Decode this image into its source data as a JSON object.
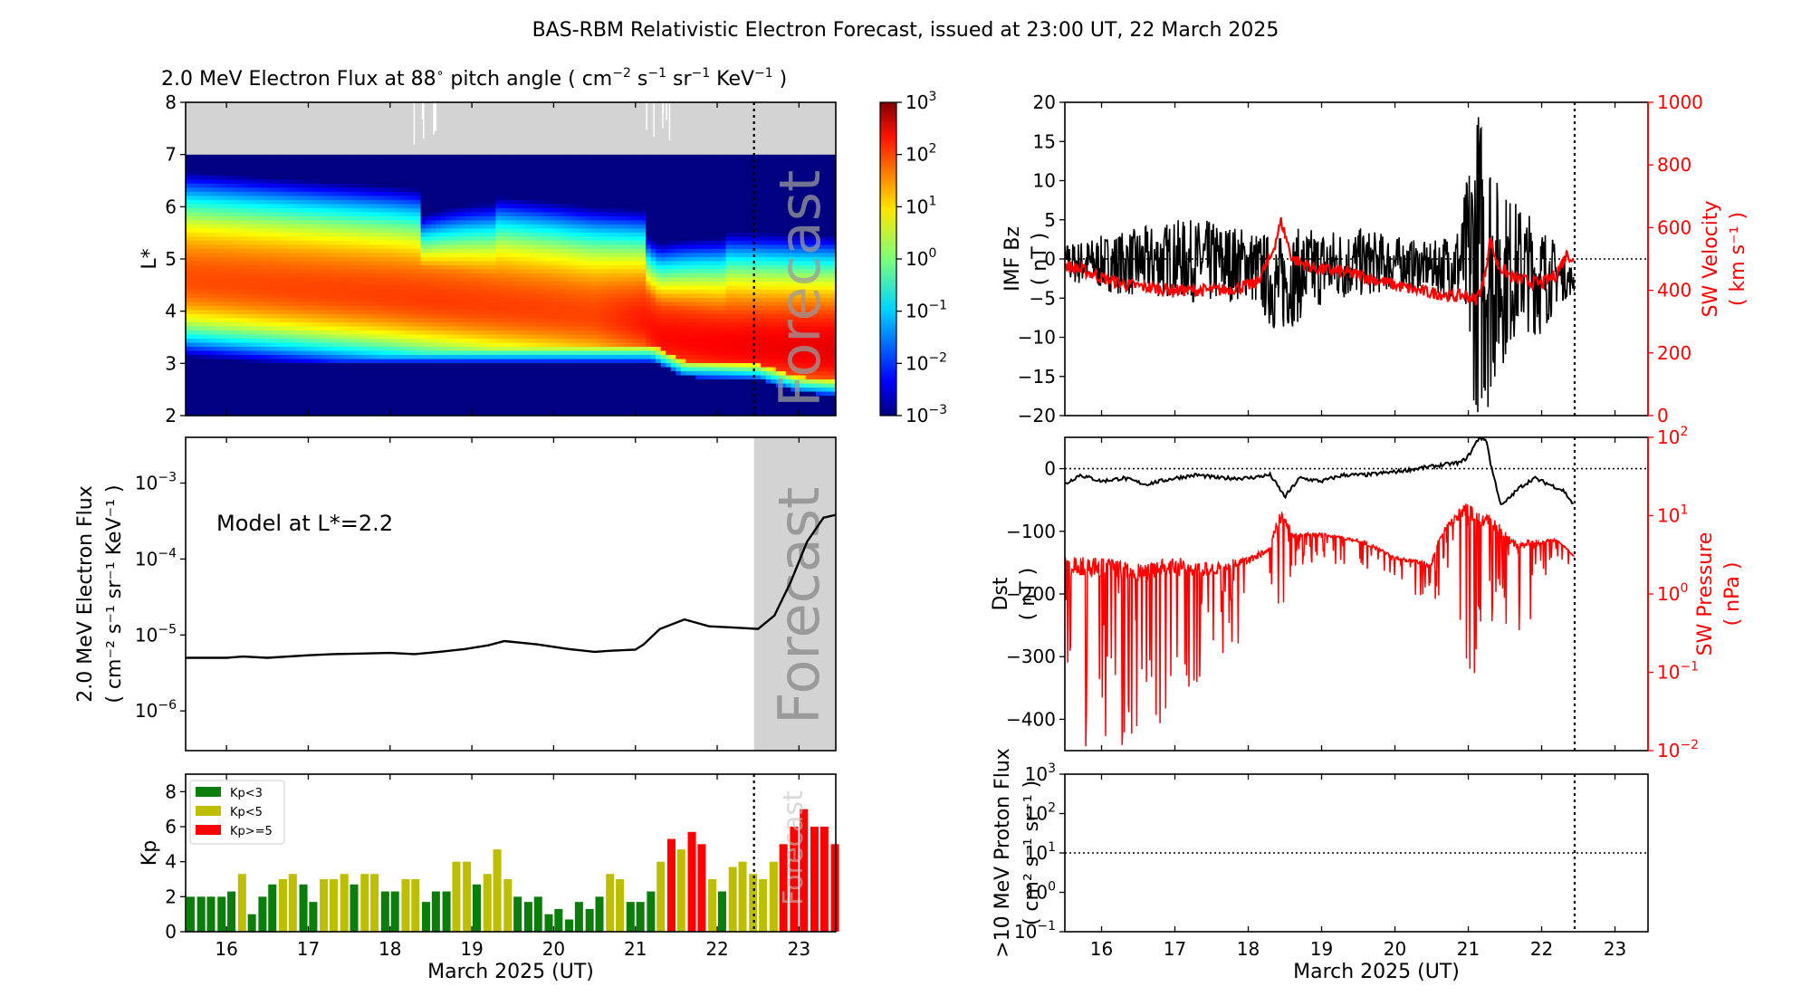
{
  "title": "BAS-RBM Relativistic Electron Forecast, issued at 23:00 UT, 22 March 2025",
  "forecast_label": "Forecast",
  "date_axis": {
    "xlabel": "March 2025 (UT)",
    "ticks": [
      "16",
      "17",
      "18",
      "19",
      "20",
      "21",
      "22",
      "23"
    ],
    "xlim_days": [
      15.5,
      23.45
    ],
    "issue_day": 22.45
  },
  "colors": {
    "model": "#000000",
    "sw": "#ff0000",
    "kp_low": "#0b7d0b",
    "kp_mid": "#bebe00",
    "kp_high": "#ff0000",
    "grey": "#d3d3d3"
  },
  "panels": {
    "flux_map": {
      "title_main": "2.0 MeV Electron Flux at 88",
      "title_deg": "∘",
      "title_mid": " pitch angle ( cm",
      "title_e1": "−2",
      "title_s": " s",
      "title_e2": "−1",
      "title_sr": " sr",
      "title_e3": "−1",
      "title_kev": " KeV",
      "title_e4": "−1",
      "title_end": " )",
      "ylabel": "L*",
      "yticks": [
        "2",
        "3",
        "4",
        "5",
        "6",
        "7",
        "8"
      ],
      "colorbar_ticks": [
        {
          "base": "10",
          "exp": "3"
        },
        {
          "base": "10",
          "exp": "2"
        },
        {
          "base": "10",
          "exp": "1"
        },
        {
          "base": "10",
          "exp": "0"
        },
        {
          "base": "10",
          "exp": "−1"
        },
        {
          "base": "10",
          "exp": "−2"
        },
        {
          "base": "10",
          "exp": "−3"
        }
      ]
    },
    "flux_line": {
      "annotation": "Model at L*=2.2",
      "ylabel_1": "2.0 MeV Electron Flux",
      "ylabel_2": "( cm⁻² s⁻¹ sr⁻¹ KeV⁻¹ )",
      "yticks": [
        {
          "base": "10",
          "exp": "−3"
        },
        {
          "base": "10",
          "exp": "−4"
        },
        {
          "base": "10",
          "exp": "−5"
        },
        {
          "base": "10",
          "exp": "−6"
        }
      ]
    },
    "kp": {
      "ylabel": "Kp",
      "yticks": [
        "0",
        "2",
        "4",
        "6",
        "8"
      ],
      "legend": [
        "Kp<3",
        "Kp<5",
        "Kp>=5"
      ]
    },
    "imf": {
      "ylabel_1": "IMF Bz",
      "ylabel_2": "( nT )",
      "y2label_1": "SW Velocity",
      "y2label_2": "( km s⁻¹ )",
      "yticks": [
        "20",
        "15",
        "10",
        "5",
        "0",
        "−5",
        "−10",
        "−15",
        "−20"
      ],
      "y2ticks": [
        "1000",
        "800",
        "600",
        "400",
        "200",
        "0"
      ]
    },
    "dst": {
      "ylabel_1": "Dst",
      "ylabel_2": "( nT )",
      "y2label_1": "SW Pressure",
      "y2label_2": "( nPa )",
      "yticks": [
        "0",
        "−100",
        "−200",
        "−300",
        "−400"
      ],
      "y2ticks": [
        {
          "base": "10",
          "exp": "2"
        },
        {
          "base": "10",
          "exp": "1"
        },
        {
          "base": "10",
          "exp": "0"
        },
        {
          "base": "10",
          "exp": "−1"
        },
        {
          "base": "10",
          "exp": "−2"
        }
      ]
    },
    "proton": {
      "ylabel_1": ">10 MeV Proton Flux",
      "ylabel_2": "( cm² s⁻¹ sr⁻¹ )",
      "yticks": [
        {
          "base": "10",
          "exp": "3"
        },
        {
          "base": "10",
          "exp": "2"
        },
        {
          "base": "10",
          "exp": "1"
        },
        {
          "base": "10",
          "exp": "0"
        },
        {
          "base": "10",
          "exp": "−1"
        }
      ]
    }
  },
  "chart_data": [
    {
      "type": "heatmap",
      "title": "2.0 MeV Electron Flux at 88° pitch angle ( cm−2 s−1 sr−1 KeV−1 )",
      "ylabel": "L*",
      "xlim": [
        15.5,
        23.45
      ],
      "ylim": [
        2,
        8
      ],
      "colorbar": {
        "scale": "log",
        "range": [
          0.001,
          1000
        ],
        "colormap": "jet"
      },
      "grey_region_above_L": 7.0,
      "core_L": [
        [
          15.5,
          4.6
        ],
        [
          18.0,
          4.3
        ],
        [
          20.0,
          4.0
        ],
        [
          21.1,
          3.8
        ],
        [
          21.3,
          3.5
        ],
        [
          22.0,
          3.35
        ],
        [
          23.45,
          3.25
        ]
      ],
      "core_log_flux": [
        [
          15.5,
          1.8
        ],
        [
          18.5,
          1.9
        ],
        [
          20.5,
          1.85
        ],
        [
          21.3,
          2.2
        ],
        [
          22.4,
          2.3
        ],
        [
          23.45,
          2.4
        ]
      ],
      "inner_edge_L": [
        [
          15.5,
          3.05
        ],
        [
          21.2,
          3.05
        ],
        [
          21.6,
          2.75
        ],
        [
          22.5,
          2.7
        ],
        [
          23.0,
          2.45
        ],
        [
          23.45,
          2.4
        ]
      ],
      "outer_dropouts": [
        {
          "day": 18.4,
          "depth": 0.9
        },
        {
          "day": 21.2,
          "depth": 0.7
        }
      ]
    },
    {
      "type": "line",
      "series": [
        {
          "name": "Model at L*=2.2",
          "x": [
            15.5,
            16.0,
            16.2,
            16.5,
            17.0,
            17.3,
            17.7,
            18.0,
            18.3,
            18.6,
            18.9,
            19.2,
            19.4,
            19.8,
            20.2,
            20.5,
            20.7,
            21.0,
            21.1,
            21.3,
            21.6,
            21.9,
            22.2,
            22.5,
            22.7,
            22.9,
            23.1,
            23.3,
            23.45
          ],
          "y": [
            5e-06,
            5e-06,
            5.2e-06,
            5e-06,
            5.4e-06,
            5.6e-06,
            5.7e-06,
            5.8e-06,
            5.6e-06,
            6e-06,
            6.5e-06,
            7.3e-06,
            8.3e-06,
            7.5e-06,
            6.5e-06,
            6e-06,
            6.2e-06,
            6.4e-06,
            7.5e-06,
            1.2e-05,
            1.6e-05,
            1.3e-05,
            1.25e-05,
            1.2e-05,
            1.8e-05,
            5e-05,
            0.00017,
            0.00035,
            0.00038
          ]
        }
      ],
      "ylabel": "2.0 MeV Electron Flux ( cm−2 s−1 sr−1 KeV−1 )",
      "yscale": "log",
      "ylim": [
        3e-07,
        0.004
      ],
      "forecast_window": [
        22.45,
        23.45
      ]
    },
    {
      "type": "bar",
      "ylabel": "Kp",
      "ylim": [
        0,
        9
      ],
      "bar_width_days": 0.1,
      "x": [
        15.56,
        15.69,
        15.81,
        15.94,
        16.06,
        16.19,
        16.31,
        16.44,
        16.56,
        16.69,
        16.81,
        16.94,
        17.06,
        17.19,
        17.31,
        17.44,
        17.56,
        17.69,
        17.81,
        17.94,
        18.06,
        18.19,
        18.31,
        18.44,
        18.56,
        18.69,
        18.81,
        18.94,
        19.06,
        19.19,
        19.31,
        19.44,
        19.56,
        19.69,
        19.81,
        19.94,
        20.06,
        20.19,
        20.31,
        20.44,
        20.56,
        20.69,
        20.81,
        20.94,
        21.06,
        21.19,
        21.31,
        21.44,
        21.56,
        21.69,
        21.81,
        21.94,
        22.06,
        22.19,
        22.31,
        22.44,
        22.56,
        22.69,
        22.81,
        22.94,
        23.06,
        23.19,
        23.31,
        23.44
      ],
      "values": [
        2.0,
        2.0,
        2.0,
        2.0,
        2.3,
        3.3,
        1.0,
        2.0,
        2.7,
        3.0,
        3.3,
        2.7,
        1.7,
        3.0,
        3.0,
        3.3,
        2.7,
        3.3,
        3.3,
        2.3,
        2.3,
        3.0,
        3.0,
        1.7,
        2.3,
        2.3,
        4.0,
        4.0,
        2.7,
        3.3,
        4.7,
        3.0,
        2.0,
        1.7,
        2.0,
        1.0,
        1.3,
        0.7,
        1.7,
        1.3,
        2.0,
        3.3,
        3.0,
        1.7,
        1.7,
        2.3,
        4.0,
        5.3,
        4.7,
        5.7,
        5.0,
        3.0,
        2.3,
        3.7,
        4.0,
        3.3,
        3.0,
        4.0,
        5.0,
        6.0,
        7.0,
        6.0,
        6.0,
        5.0
      ],
      "legend": [
        "Kp<3",
        "Kp<5",
        "Kp>=5"
      ]
    },
    {
      "type": "line",
      "series": [
        {
          "name": "IMF Bz",
          "axis": "left",
          "unit": "nT",
          "ylim": [
            -20,
            20
          ],
          "envelope_x": [
            15.5,
            16.0,
            16.5,
            17.0,
            17.5,
            18.0,
            18.4,
            18.7,
            19.0,
            19.5,
            20.0,
            20.5,
            20.9,
            21.1,
            21.25,
            21.4,
            21.7,
            22.0,
            22.2,
            22.5
          ],
          "envelope_min": [
            -3,
            -4,
            -5,
            -5,
            -6,
            -5,
            -10,
            -8,
            -6,
            -5,
            -4,
            -4,
            -6,
            -20,
            -20,
            -15,
            -9,
            -10,
            -6,
            -4
          ],
          "envelope_max": [
            2,
            3,
            4,
            5,
            5,
            4,
            3,
            4,
            4,
            4,
            3,
            2,
            5,
            20,
            20,
            10,
            7,
            5,
            2,
            -2
          ]
        },
        {
          "name": "SW Velocity",
          "axis": "right",
          "unit": "km s−1",
          "ylim": [
            0,
            1000
          ],
          "x": [
            15.5,
            15.8,
            16.0,
            16.3,
            16.6,
            17.0,
            17.3,
            17.6,
            17.9,
            18.1,
            18.3,
            18.45,
            18.6,
            18.9,
            19.2,
            19.5,
            19.8,
            20.1,
            20.4,
            20.6,
            20.8,
            20.95,
            21.1,
            21.2,
            21.3,
            21.4,
            21.6,
            21.8,
            22.0,
            22.2,
            22.35,
            22.45
          ],
          "y": [
            480,
            460,
            440,
            420,
            410,
            400,
            400,
            400,
            410,
            420,
            500,
            620,
            500,
            470,
            460,
            450,
            430,
            410,
            395,
            390,
            380,
            385,
            370,
            420,
            560,
            480,
            440,
            430,
            420,
            450,
            520,
            490
          ]
        }
      ],
      "zero_line": 0,
      "forecast_start": 22.45
    },
    {
      "type": "line",
      "series": [
        {
          "name": "Dst",
          "axis": "left",
          "unit": "nT",
          "ylim": [
            -450,
            50
          ],
          "x": [
            15.5,
            15.7,
            16.0,
            16.3,
            16.6,
            17.0,
            17.3,
            17.6,
            18.0,
            18.3,
            18.5,
            18.7,
            19.0,
            19.3,
            19.6,
            20.0,
            20.3,
            20.6,
            20.9,
            21.0,
            21.1,
            21.15,
            21.25,
            21.3,
            21.45,
            21.7,
            21.9,
            22.1,
            22.3,
            22.45
          ],
          "y": [
            -25,
            -10,
            -20,
            -15,
            -25,
            -15,
            -10,
            -15,
            -15,
            -10,
            -45,
            -15,
            -20,
            -10,
            -10,
            -5,
            0,
            5,
            10,
            20,
            40,
            50,
            45,
            10,
            -60,
            -30,
            -15,
            -25,
            -35,
            -60
          ]
        },
        {
          "name": "SW Pressure",
          "axis": "right",
          "unit": "nPa",
          "scale": "log",
          "ylim": [
            0.01,
            100
          ],
          "envelope_x": [
            15.5,
            16.0,
            16.5,
            17.0,
            17.5,
            18.0,
            18.3,
            18.45,
            18.6,
            19.0,
            19.5,
            20.0,
            20.5,
            20.7,
            21.0,
            21.3,
            21.6,
            21.9,
            22.2,
            22.45
          ],
          "envelope_min": [
            0.01,
            0.01,
            0.01,
            0.01,
            0.05,
            0.3,
            0.8,
            0.04,
            2,
            2.5,
            2,
            1.2,
            0.8,
            1,
            0.05,
            0.2,
            0.3,
            0.3,
            3,
            2
          ],
          "envelope_max": [
            3,
            3,
            2.5,
            3,
            2.5,
            3,
            4,
            12,
            6,
            6,
            5,
            3,
            2.5,
            8,
            15,
            10,
            5,
            5,
            5,
            3
          ]
        }
      ],
      "zero_line": 0,
      "forecast_start": 22.45
    },
    {
      "type": "line",
      "ylabel": ">10 MeV Proton Flux ( cm2 s−1 sr−1 )",
      "yscale": "log",
      "ylim": [
        0.1,
        1000
      ],
      "series": [],
      "threshold_line": 10,
      "forecast_start": 22.45
    }
  ]
}
